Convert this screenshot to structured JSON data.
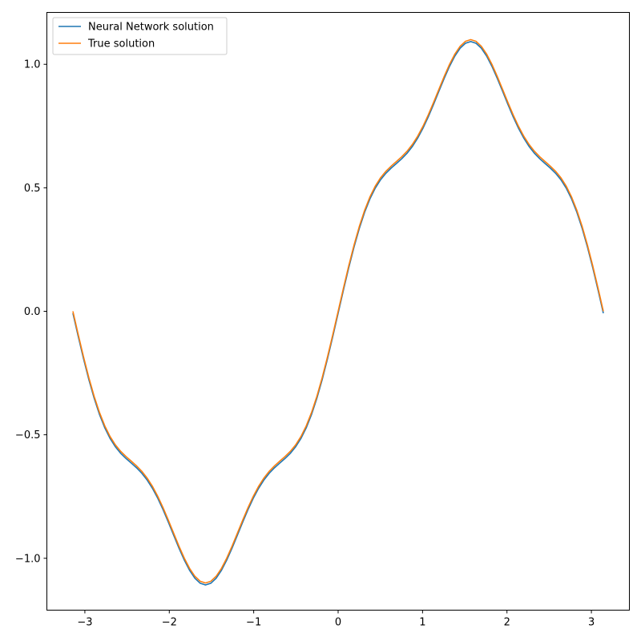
{
  "chart_data": {
    "type": "line",
    "title": "",
    "xlabel": "",
    "ylabel": "",
    "xlim": [
      -3.45,
      3.45
    ],
    "ylim": [
      -1.21,
      1.21
    ],
    "xticks": [
      -3,
      -2,
      -1,
      0,
      1,
      2,
      3
    ],
    "yticks": [
      -1.0,
      -0.5,
      0.0,
      0.5,
      1.0
    ],
    "xtick_labels": [
      "−3",
      "−2",
      "−1",
      "0",
      "1",
      "2",
      "3"
    ],
    "ytick_labels": [
      "−1.0",
      "−0.5",
      "0.0",
      "0.5",
      "1.0"
    ],
    "grid": false,
    "legend_position": "top-left",
    "x_range": [
      -3.1416,
      3.1416
    ],
    "num_points": 101,
    "series": [
      {
        "name": "Neural Network solution",
        "color": "#1f77b4",
        "key_points": [
          [
            -3.1416,
            -0.01
          ],
          [
            -2.2,
            -0.9
          ],
          [
            -1.95,
            -0.845
          ],
          [
            -1.57,
            -1.105
          ],
          [
            -1.2,
            -0.845
          ],
          [
            -0.95,
            -0.895
          ],
          [
            -0.3,
            -0.34
          ],
          [
            0,
            0
          ],
          [
            0.3,
            0.335
          ],
          [
            0.95,
            0.88
          ],
          [
            1.18,
            0.83
          ],
          [
            1.57,
            1.095
          ],
          [
            1.95,
            0.83
          ],
          [
            2.2,
            0.88
          ],
          [
            2.85,
            0.33
          ],
          [
            3.1416,
            -0.01
          ]
        ],
        "formula_offset": -0.008
      },
      {
        "name": "True solution",
        "color": "#ff7f0e",
        "key_points": [
          [
            -3.1416,
            0.0
          ],
          [
            -2.2,
            -0.89
          ],
          [
            -1.95,
            -0.835
          ],
          [
            -1.57,
            -1.095
          ],
          [
            -1.2,
            -0.835
          ],
          [
            -0.95,
            -0.885
          ],
          [
            -0.3,
            -0.335
          ],
          [
            0,
            0
          ],
          [
            0.3,
            0.34
          ],
          [
            0.95,
            0.89
          ],
          [
            1.18,
            0.84
          ],
          [
            1.57,
            1.1
          ],
          [
            1.95,
            0.84
          ],
          [
            2.2,
            0.89
          ],
          [
            2.85,
            0.34
          ],
          [
            3.1416,
            0.0
          ]
        ],
        "formula_offset": 0.0
      }
    ]
  }
}
